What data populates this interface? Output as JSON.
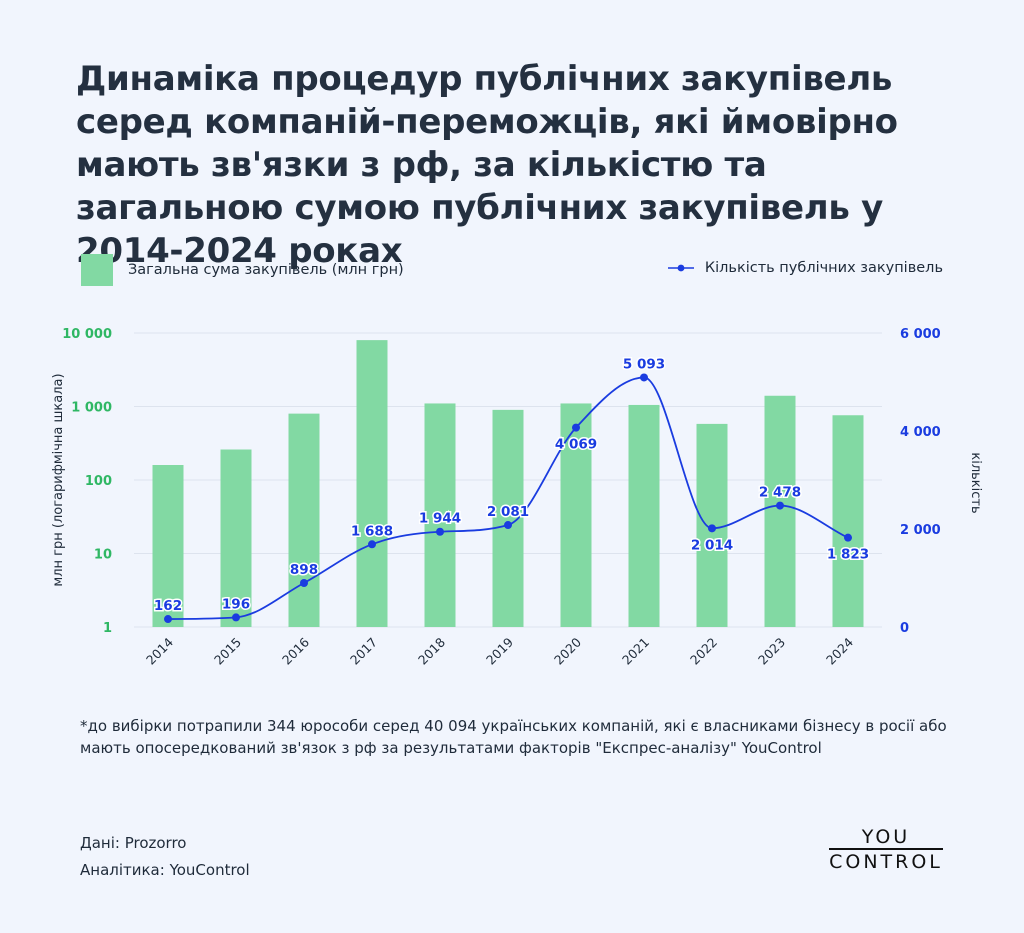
{
  "title": "Динаміка процедур публічних закупівель серед компаній-переможців, які ймовірно мають зв'язки з рф, за кількістю та загальною сумою публічних закупівель у 2014-2024 роках",
  "legend": {
    "bars": "Загальна сума закупівель (млн грн)",
    "line": "Кількість публічних закупівель"
  },
  "footnote": "*до вибірки потрапили 344 юрособи серед 40 094 українських компаній, які є власниками бізнесу в росії або мають опосередкований зв'язок з рф за результатами факторів \"Експрес-аналізу\" YouControl",
  "credits": {
    "data": "Дані: Prozorro",
    "analytics": "Аналітика: YouControl"
  },
  "logo": {
    "line1": "YOU",
    "line2": "CONTROL"
  },
  "colors": {
    "bars": "#82d9a3",
    "line": "#1a3ce0",
    "left_axis": "#2fb764",
    "right_axis": "#1a3ce0"
  },
  "chart_data": {
    "type": "bar+line",
    "categories": [
      "2014",
      "2015",
      "2016",
      "2017",
      "2018",
      "2019",
      "2020",
      "2021",
      "2022",
      "2023",
      "2024"
    ],
    "series": [
      {
        "name": "Загальна сума закупівель (млн грн)",
        "type": "bar",
        "axis": "left",
        "values": [
          160,
          260,
          800,
          8000,
          1100,
          900,
          1100,
          1050,
          580,
          1400,
          760
        ]
      },
      {
        "name": "Кількість публічних закупівель",
        "type": "line",
        "axis": "right",
        "values": [
          162,
          196,
          898,
          1688,
          1944,
          2081,
          4069,
          5093,
          2014,
          2478,
          1823
        ],
        "labels": [
          "162",
          "196",
          "898",
          "1 688",
          "1 944",
          "2 081",
          "4 069",
          "5 093",
          "2 014",
          "2 478",
          "1 823"
        ]
      }
    ],
    "left_axis": {
      "label": "млн грн (логарифмічна шкала)",
      "scale": "log",
      "range": [
        1,
        10000
      ],
      "ticks": [
        1,
        10,
        100,
        1000,
        10000
      ],
      "tick_labels": [
        "1",
        "10",
        "100",
        "1 000",
        "10 000"
      ]
    },
    "right_axis": {
      "label": "кількість",
      "scale": "linear",
      "range": [
        0,
        6000
      ],
      "ticks": [
        0,
        2000,
        4000,
        6000
      ],
      "tick_labels": [
        "0",
        "2 000",
        "4 000",
        "6 000"
      ]
    },
    "grid": true
  }
}
